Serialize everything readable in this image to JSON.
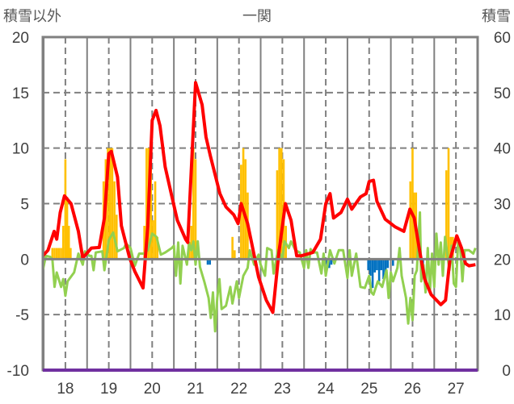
{
  "chart_data": {
    "type": "line",
    "title": "一関",
    "ylabel_left": "積雪以外",
    "ylabel_right": "積雪",
    "ylim_left": [
      -10,
      20
    ],
    "ylim_right": [
      0,
      60
    ],
    "yticks_left": [
      "20",
      "15",
      "10",
      "5",
      "0",
      "-5",
      "-10"
    ],
    "yticks_right": [
      "60",
      "50",
      "40",
      "30",
      "20",
      "10",
      "0"
    ],
    "xlim": [
      17.48,
      27.5
    ],
    "xticks": [
      "18",
      "19",
      "20",
      "21",
      "22",
      "23",
      "24",
      "25",
      "26",
      "27"
    ],
    "grid": true,
    "colors": {
      "red": "#ff0000",
      "green": "#92d050",
      "orange": "#ffc000",
      "blue": "#0070c0",
      "purple": "#7030a0",
      "grid": "#808080"
    },
    "series": [
      {
        "name": "red",
        "color": "#ff0000",
        "points": [
          [
            17.48,
            0.3
          ],
          [
            17.6,
            0.8
          ],
          [
            17.74,
            2.5
          ],
          [
            17.8,
            1.8
          ],
          [
            17.88,
            4.2
          ],
          [
            17.98,
            5.7
          ],
          [
            18.13,
            5.0
          ],
          [
            18.3,
            2.5
          ],
          [
            18.4,
            0.1
          ],
          [
            18.6,
            1.0
          ],
          [
            18.78,
            1.05
          ],
          [
            18.9,
            3.7
          ],
          [
            19.0,
            9.5
          ],
          [
            19.06,
            9.7
          ],
          [
            19.2,
            7.4
          ],
          [
            19.29,
            3.0
          ],
          [
            19.48,
            0.1
          ],
          [
            19.6,
            -1.1
          ],
          [
            19.79,
            -2.6
          ],
          [
            19.9,
            3.0
          ],
          [
            20.0,
            12.5
          ],
          [
            20.09,
            13.4
          ],
          [
            20.18,
            12.0
          ],
          [
            20.3,
            8.3
          ],
          [
            20.45,
            5.7
          ],
          [
            20.58,
            3.5
          ],
          [
            20.77,
            1.8
          ],
          [
            20.82,
            1.5
          ],
          [
            20.9,
            7.9
          ],
          [
            21.0,
            15.9
          ],
          [
            21.15,
            13.9
          ],
          [
            21.24,
            11.0
          ],
          [
            21.34,
            9.3
          ],
          [
            21.56,
            5.9
          ],
          [
            21.7,
            4.7
          ],
          [
            21.88,
            4.0
          ],
          [
            21.98,
            3.2
          ],
          [
            22.05,
            5.0
          ],
          [
            22.2,
            3.2
          ],
          [
            22.3,
            1.3
          ],
          [
            22.45,
            -1.6
          ],
          [
            22.63,
            -3.7
          ],
          [
            22.78,
            -4.8
          ],
          [
            22.92,
            0.6
          ],
          [
            23.07,
            5.0
          ],
          [
            23.2,
            3.5
          ],
          [
            23.33,
            0.3
          ],
          [
            23.44,
            0.3
          ],
          [
            23.7,
            0.6
          ],
          [
            23.88,
            1.8
          ],
          [
            24.0,
            5.0
          ],
          [
            24.1,
            5.9
          ],
          [
            24.18,
            3.7
          ],
          [
            24.35,
            4.2
          ],
          [
            24.5,
            5.4
          ],
          [
            24.6,
            4.5
          ],
          [
            24.8,
            5.6
          ],
          [
            24.93,
            5.9
          ],
          [
            25.0,
            7.0
          ],
          [
            25.1,
            7.1
          ],
          [
            25.18,
            5.2
          ],
          [
            25.37,
            3.6
          ],
          [
            25.6,
            2.9
          ],
          [
            25.8,
            2.5
          ],
          [
            25.94,
            4.5
          ],
          [
            26.04,
            3.7
          ],
          [
            26.16,
            0.8
          ],
          [
            26.28,
            -1.8
          ],
          [
            26.43,
            -3.2
          ],
          [
            26.65,
            -4.1
          ],
          [
            26.76,
            -3.7
          ],
          [
            26.86,
            -0.1
          ],
          [
            27.02,
            2.1
          ],
          [
            27.13,
            1.0
          ],
          [
            27.22,
            -0.4
          ],
          [
            27.3,
            -0.6
          ],
          [
            27.45,
            -0.5
          ]
        ]
      },
      {
        "name": "green",
        "color": "#92d050",
        "points": [
          [
            17.48,
            -1.0
          ],
          [
            17.55,
            0.3
          ],
          [
            17.65,
            0.2
          ],
          [
            17.7,
            0.0
          ],
          [
            17.75,
            -2.5
          ],
          [
            17.8,
            -1.2
          ],
          [
            17.9,
            -2.5
          ],
          [
            17.95,
            -1.8
          ],
          [
            18.0,
            -3.3
          ],
          [
            18.05,
            -2.0
          ],
          [
            18.2,
            -1.2
          ],
          [
            18.3,
            0.5
          ],
          [
            18.4,
            -0.5
          ],
          [
            18.45,
            0.7
          ],
          [
            18.55,
            0.3
          ],
          [
            18.6,
            0.3
          ],
          [
            18.65,
            -1.0
          ],
          [
            18.7,
            0.6
          ],
          [
            18.85,
            0.7
          ],
          [
            18.9,
            -1.0
          ],
          [
            19.0,
            1.7
          ],
          [
            19.1,
            2.4
          ],
          [
            19.2,
            0.7
          ],
          [
            19.35,
            1.0
          ],
          [
            19.4,
            1.4
          ],
          [
            19.5,
            1.0
          ],
          [
            19.6,
            -0.6
          ],
          [
            19.7,
            0.5
          ],
          [
            19.8,
            0.5
          ],
          [
            19.9,
            0.8
          ],
          [
            20.0,
            2.3
          ],
          [
            20.1,
            2.0
          ],
          [
            20.2,
            0.4
          ],
          [
            20.3,
            0.6
          ],
          [
            20.45,
            1.0
          ],
          [
            20.5,
            1.2
          ],
          [
            20.55,
            -1.5
          ],
          [
            20.6,
            1.5
          ],
          [
            20.65,
            -2.2
          ],
          [
            20.7,
            1.2
          ],
          [
            20.8,
            -0.5
          ],
          [
            20.85,
            1.5
          ],
          [
            20.9,
            0.8
          ],
          [
            20.95,
            1.6
          ],
          [
            21.0,
            -0.5
          ],
          [
            21.05,
            1.6
          ],
          [
            21.1,
            -0.7
          ],
          [
            21.2,
            -2.0
          ],
          [
            21.3,
            -3.5
          ],
          [
            21.35,
            -5.3
          ],
          [
            21.4,
            -3.0
          ],
          [
            21.45,
            -6.5
          ],
          [
            21.5,
            -3.5
          ],
          [
            21.55,
            -1.8
          ],
          [
            21.6,
            -4.5
          ],
          [
            21.7,
            -4.2
          ],
          [
            21.8,
            -2.5
          ],
          [
            21.85,
            -4.0
          ],
          [
            21.95,
            -2.0
          ],
          [
            22.0,
            -3.5
          ],
          [
            22.1,
            -1.5
          ],
          [
            22.2,
            -0.8
          ],
          [
            22.25,
            0.8
          ],
          [
            22.35,
            -0.5
          ],
          [
            22.45,
            0.4
          ],
          [
            22.5,
            -0.5
          ],
          [
            22.6,
            -1.5
          ],
          [
            22.65,
            1.0
          ],
          [
            22.75,
            0.8
          ],
          [
            22.8,
            -1.3
          ],
          [
            22.9,
            0.8
          ],
          [
            23.0,
            0.1
          ],
          [
            23.05,
            1.6
          ],
          [
            23.15,
            1.0
          ],
          [
            23.2,
            1.6
          ],
          [
            23.3,
            0.8
          ],
          [
            23.4,
            0.6
          ],
          [
            23.5,
            -0.8
          ],
          [
            23.55,
            0.8
          ],
          [
            23.6,
            -0.8
          ],
          [
            23.65,
            0.9
          ],
          [
            23.7,
            0.6
          ],
          [
            23.8,
            0.6
          ],
          [
            23.9,
            -1.3
          ],
          [
            23.95,
            0.5
          ],
          [
            24.0,
            -1.5
          ],
          [
            24.1,
            0.8
          ],
          [
            24.2,
            -0.4
          ],
          [
            24.3,
            0.8
          ],
          [
            24.4,
            0.8
          ],
          [
            24.5,
            -1.7
          ],
          [
            24.55,
            0.8
          ],
          [
            24.6,
            -1.5
          ],
          [
            24.7,
            0.5
          ],
          [
            24.8,
            -2.5
          ],
          [
            24.9,
            -2.6
          ],
          [
            25.0,
            -1.5
          ],
          [
            25.05,
            -3.0
          ],
          [
            25.1,
            -3.2
          ],
          [
            25.2,
            -2.0
          ],
          [
            25.3,
            -2.5
          ],
          [
            25.4,
            -1.0
          ],
          [
            25.45,
            -3.5
          ],
          [
            25.5,
            -1.2
          ],
          [
            25.55,
            -2.0
          ],
          [
            25.65,
            -0.8
          ],
          [
            25.7,
            1.0
          ],
          [
            25.75,
            -1.5
          ],
          [
            25.85,
            -3.5
          ],
          [
            25.9,
            -5.8
          ],
          [
            25.95,
            -3.5
          ],
          [
            26.0,
            -5.5
          ],
          [
            26.05,
            -1.5
          ],
          [
            26.1,
            -1.0
          ],
          [
            26.17,
            4.2
          ],
          [
            26.2,
            -2.0
          ],
          [
            26.25,
            -0.5
          ],
          [
            26.3,
            -3.0
          ],
          [
            26.35,
            1.0
          ],
          [
            26.4,
            -3.0
          ],
          [
            26.45,
            0.5
          ],
          [
            26.5,
            -2.5
          ],
          [
            26.55,
            2.3
          ],
          [
            26.6,
            -0.5
          ],
          [
            26.65,
            1.5
          ],
          [
            26.7,
            -1.5
          ],
          [
            26.75,
            2.0
          ],
          [
            26.85,
            -1.0
          ],
          [
            26.9,
            1.2
          ],
          [
            26.95,
            -2.2
          ],
          [
            27.0,
            -2.5
          ],
          [
            27.05,
            1.5
          ],
          [
            27.1,
            1.0
          ],
          [
            27.15,
            -2.0
          ],
          [
            27.2,
            0.8
          ],
          [
            27.3,
            0.8
          ],
          [
            27.4,
            0.5
          ],
          [
            27.45,
            1.0
          ]
        ]
      }
    ],
    "bars": [
      {
        "name": "orange",
        "color": "#ffc000",
        "points": [
          [
            17.7,
            1
          ],
          [
            17.75,
            1
          ],
          [
            17.8,
            1
          ],
          [
            17.85,
            1
          ],
          [
            17.9,
            1
          ],
          [
            17.95,
            3
          ],
          [
            18.0,
            9
          ],
          [
            18.04,
            5.6
          ],
          [
            18.08,
            3
          ],
          [
            18.12,
            1
          ],
          [
            18.88,
            7
          ],
          [
            18.93,
            9
          ],
          [
            18.98,
            10
          ],
          [
            19.03,
            10
          ],
          [
            19.08,
            10
          ],
          [
            19.13,
            7
          ],
          [
            19.18,
            4
          ],
          [
            19.82,
            3
          ],
          [
            19.87,
            10
          ],
          [
            19.92,
            10
          ],
          [
            19.97,
            9
          ],
          [
            20.02,
            3.5
          ],
          [
            20.07,
            7
          ],
          [
            20.12,
            2
          ],
          [
            20.85,
            1.5
          ],
          [
            20.9,
            3
          ],
          [
            20.95,
            10
          ],
          [
            21.0,
            9
          ],
          [
            21.85,
            2
          ],
          [
            21.9,
            0.8
          ],
          [
            22.05,
            8.5
          ],
          [
            22.1,
            10
          ],
          [
            22.15,
            9
          ],
          [
            22.2,
            6
          ],
          [
            22.88,
            8
          ],
          [
            22.93,
            10
          ],
          [
            22.98,
            10
          ],
          [
            23.03,
            9
          ],
          [
            23.08,
            3
          ],
          [
            25.95,
            7
          ],
          [
            26.0,
            10
          ],
          [
            26.03,
            6
          ],
          [
            26.08,
            6
          ],
          [
            26.13,
            1.7
          ],
          [
            26.78,
            8
          ],
          [
            26.83,
            10
          ],
          [
            26.88,
            2
          ],
          [
            26.93,
            2
          ]
        ]
      },
      {
        "name": "blue",
        "color": "#0070c0",
        "points": [
          [
            21.28,
            -0.5
          ],
          [
            21.33,
            -0.5
          ],
          [
            24.03,
            -0.6
          ],
          [
            24.08,
            -0.8
          ],
          [
            24.13,
            -0.5
          ],
          [
            24.98,
            -1.0
          ],
          [
            25.03,
            -1.5
          ],
          [
            25.08,
            -2.6
          ],
          [
            25.13,
            -1.2
          ],
          [
            25.18,
            -1.0
          ],
          [
            25.23,
            -2.0
          ],
          [
            25.28,
            -1.0
          ],
          [
            25.33,
            -1.8
          ],
          [
            25.38,
            -1.2
          ],
          [
            25.43,
            -0.8
          ],
          [
            25.55,
            -0.6
          ],
          [
            26.24,
            -0.5
          ]
        ]
      }
    ],
    "baseline": {
      "name": "purple",
      "color": "#7030a0",
      "value": -10
    }
  }
}
